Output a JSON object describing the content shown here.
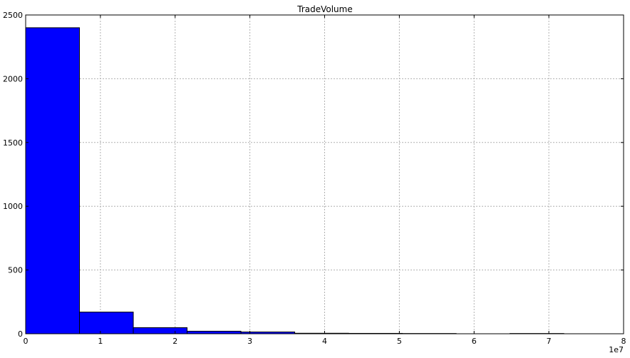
{
  "chart_data": {
    "type": "bar",
    "title": "TradeVolume",
    "xlabel": "",
    "ylabel": "",
    "x_offset_label": "1e7",
    "xlim": [
      0,
      80000000
    ],
    "ylim": [
      0,
      2500
    ],
    "x_ticks": [
      0,
      1,
      2,
      3,
      4,
      5,
      6,
      7,
      8
    ],
    "y_ticks": [
      0,
      500,
      1000,
      1500,
      2000,
      2500
    ],
    "grid": true,
    "bar_color": "#0000ff",
    "bins": [
      {
        "x0": 0,
        "x1": 7200000,
        "count": 2400
      },
      {
        "x0": 7200000,
        "x1": 14400000,
        "count": 170
      },
      {
        "x0": 14400000,
        "x1": 21600000,
        "count": 48
      },
      {
        "x0": 21600000,
        "x1": 28800000,
        "count": 20
      },
      {
        "x0": 28800000,
        "x1": 36000000,
        "count": 14
      },
      {
        "x0": 36000000,
        "x1": 43200000,
        "count": 4
      },
      {
        "x0": 43200000,
        "x1": 50400000,
        "count": 3
      },
      {
        "x0": 50400000,
        "x1": 57600000,
        "count": 2
      },
      {
        "x0": 57600000,
        "x1": 64800000,
        "count": 0
      },
      {
        "x0": 64800000,
        "x1": 72000000,
        "count": 2
      }
    ]
  }
}
